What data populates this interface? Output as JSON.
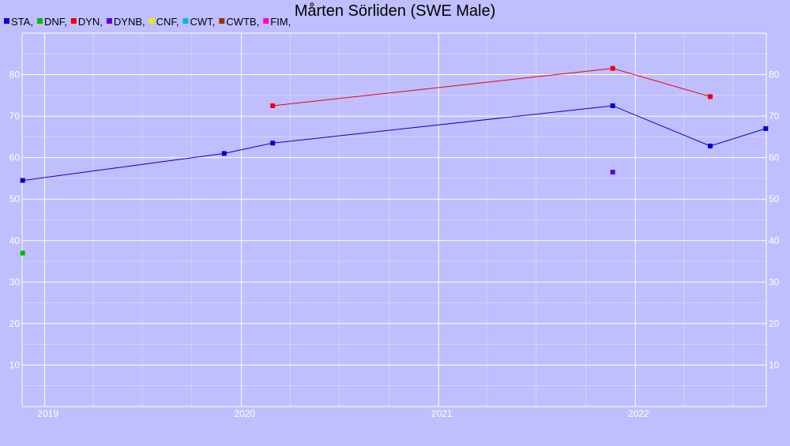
{
  "chart_data": {
    "type": "line",
    "title": "Mårten Sörliden (SWE Male)",
    "legend": {
      "placement": "top-left",
      "entries": [
        {
          "label": "STA,",
          "color": "#0000cc"
        },
        {
          "label": "DNF,",
          "color": "#00bb00"
        },
        {
          "label": "DYN,",
          "color": "#ee0000"
        },
        {
          "label": "DYNB,",
          "color": "#6600cc"
        },
        {
          "label": "CNF,",
          "color": "#eeee00"
        },
        {
          "label": "CWT,",
          "color": "#00bbdd"
        },
        {
          "label": "CWTB,",
          "color": "#993300"
        },
        {
          "label": "FIM,",
          "color": "#ff00cc"
        }
      ]
    },
    "x_axis": {
      "type": "date",
      "range": [
        "2018-11-20",
        "2022-09-01"
      ],
      "ticks": [
        {
          "label": "2019",
          "date": "2019-01-01"
        },
        {
          "label": "2020",
          "date": "2020-01-01"
        },
        {
          "label": "2021",
          "date": "2021-01-01"
        },
        {
          "label": "2022",
          "date": "2022-01-01"
        }
      ]
    },
    "y_axis": {
      "range": [
        0,
        90
      ],
      "ticks": [
        10,
        20,
        30,
        40,
        50,
        60,
        70,
        80
      ],
      "tick_labels": [
        "10",
        "20",
        "30",
        "40",
        "50",
        "60",
        "70",
        "80"
      ]
    },
    "grid": true,
    "series": [
      {
        "name": "STA",
        "color": "#0000cc",
        "points": [
          {
            "x": "2018-11-21",
            "y": 54.5
          },
          {
            "x": "2019-11-30",
            "y": 61.0
          },
          {
            "x": "2020-02-28",
            "y": 63.5
          },
          {
            "x": "2021-11-20",
            "y": 72.5
          },
          {
            "x": "2022-05-20",
            "y": 62.8
          },
          {
            "x": "2022-08-31",
            "y": 67.0
          }
        ]
      },
      {
        "name": "DNF",
        "color": "#00bb00",
        "points": [
          {
            "x": "2018-11-21",
            "y": 37.0
          }
        ]
      },
      {
        "name": "DYN",
        "color": "#ee0000",
        "points": [
          {
            "x": "2020-02-28",
            "y": 72.5
          },
          {
            "x": "2021-11-20",
            "y": 81.5
          },
          {
            "x": "2022-05-20",
            "y": 74.7
          }
        ]
      },
      {
        "name": "DYNB",
        "color": "#6600cc",
        "points": [
          {
            "x": "2021-11-20",
            "y": 56.5
          }
        ]
      }
    ]
  }
}
